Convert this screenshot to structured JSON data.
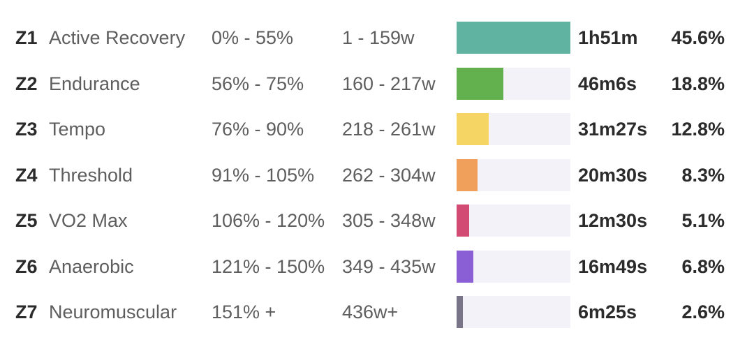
{
  "zones": [
    {
      "id": "Z1",
      "name": "Active Recovery",
      "percent_range": "0% - 55%",
      "watt_range": "1 - 159w",
      "time": "1h51m",
      "share": "45.6%",
      "share_value": 45.6,
      "color": "#5fb3a0"
    },
    {
      "id": "Z2",
      "name": "Endurance",
      "percent_range": "56% - 75%",
      "watt_range": "160 - 217w",
      "time": "46m6s",
      "share": "18.8%",
      "share_value": 18.8,
      "color": "#62b04e"
    },
    {
      "id": "Z3",
      "name": "Tempo",
      "percent_range": "76% - 90%",
      "watt_range": "218 - 261w",
      "time": "31m27s",
      "share": "12.8%",
      "share_value": 12.8,
      "color": "#f5d564"
    },
    {
      "id": "Z4",
      "name": "Threshold",
      "percent_range": "91% - 105%",
      "watt_range": "262 - 304w",
      "time": "20m30s",
      "share": "8.3%",
      "share_value": 8.3,
      "color": "#f0a05a"
    },
    {
      "id": "Z5",
      "name": "VO2 Max",
      "percent_range": "106% - 120%",
      "watt_range": "305 - 348w",
      "time": "12m30s",
      "share": "5.1%",
      "share_value": 5.1,
      "color": "#d24b72"
    },
    {
      "id": "Z6",
      "name": "Anaerobic",
      "percent_range": "121% - 150%",
      "watt_range": "349 - 435w",
      "time": "16m49s",
      "share": "6.8%",
      "share_value": 6.8,
      "color": "#8a5fd6"
    },
    {
      "id": "Z7",
      "name": "Neuromuscular",
      "percent_range": "151% +",
      "watt_range": "436w+",
      "time": "6m25s",
      "share": "2.6%",
      "share_value": 2.6,
      "color": "#7a7488"
    }
  ]
}
